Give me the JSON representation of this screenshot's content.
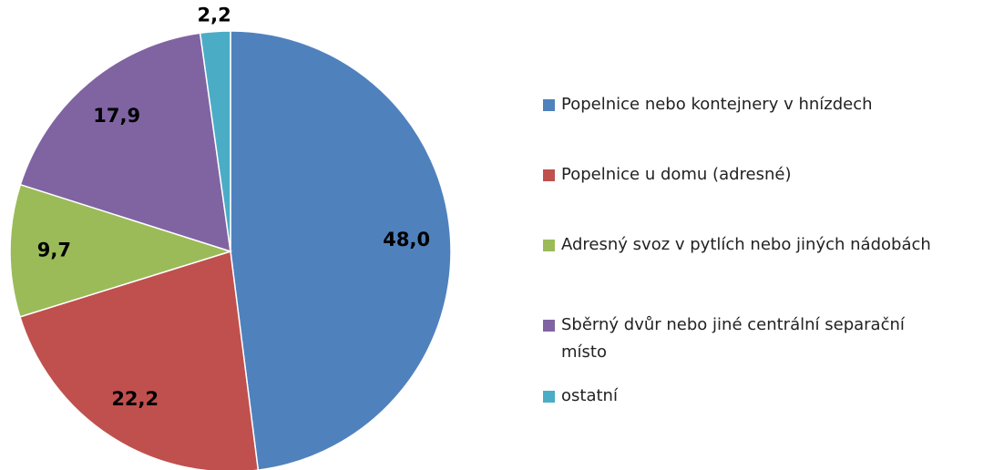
{
  "chart_data": {
    "type": "pie",
    "categories": [
      "Popelnice nebo kontejnery v hnízdech",
      "Popelnice u domu (adresné)",
      "Adresný svoz v pytlích nebo jiných nádobách",
      "Sběrný dvůr nebo jiné centrální separační místo",
      "ostatní"
    ],
    "values": [
      48.0,
      22.2,
      9.7,
      17.9,
      2.2
    ],
    "value_labels": [
      "48,0",
      "22,2",
      "9,7",
      "17,9",
      "2,2"
    ],
    "colors": [
      "#4f81bd",
      "#c0504d",
      "#9bbb59",
      "#8064a2",
      "#4bacc6"
    ],
    "legend": "right"
  }
}
